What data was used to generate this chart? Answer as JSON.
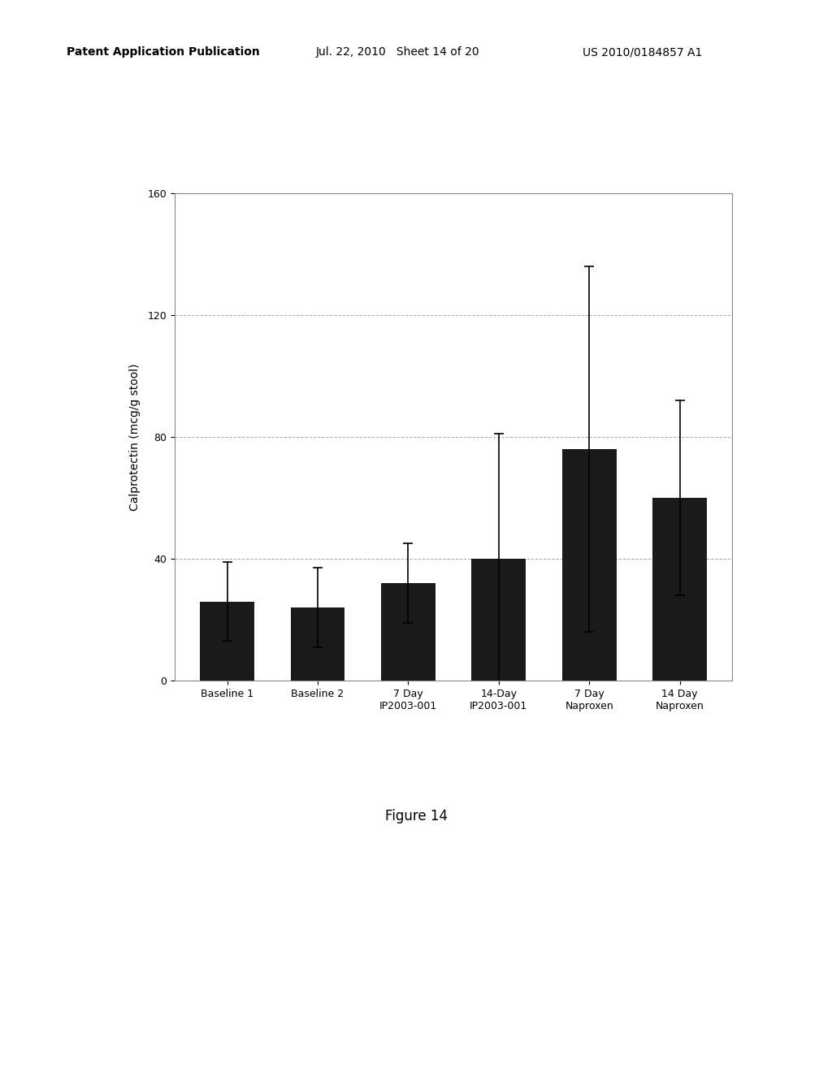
{
  "categories": [
    "Baseline 1",
    "Baseline 2",
    "7 Day\nIP2003-001",
    "14-Day\nIP2003-001",
    "7 Day\nNaproxen",
    "14 Day\nNaproxen"
  ],
  "values": [
    26,
    24,
    32,
    40,
    76,
    60
  ],
  "errors": [
    13,
    13,
    13,
    41,
    60,
    32
  ],
  "bar_color": "#1a1a1a",
  "ylabel": "Calprotectin (mcg/g stool)",
  "ylim": [
    0,
    160
  ],
  "yticks": [
    0,
    40,
    80,
    120,
    160
  ],
  "grid_color": "#aaaaaa",
  "background_color": "#ffffff",
  "figure_caption": "Figure 14",
  "header_left": "Patent Application Publication",
  "header_center": "Jul. 22, 2010   Sheet 14 of 20",
  "header_right": "US 2010/0184857 A1"
}
